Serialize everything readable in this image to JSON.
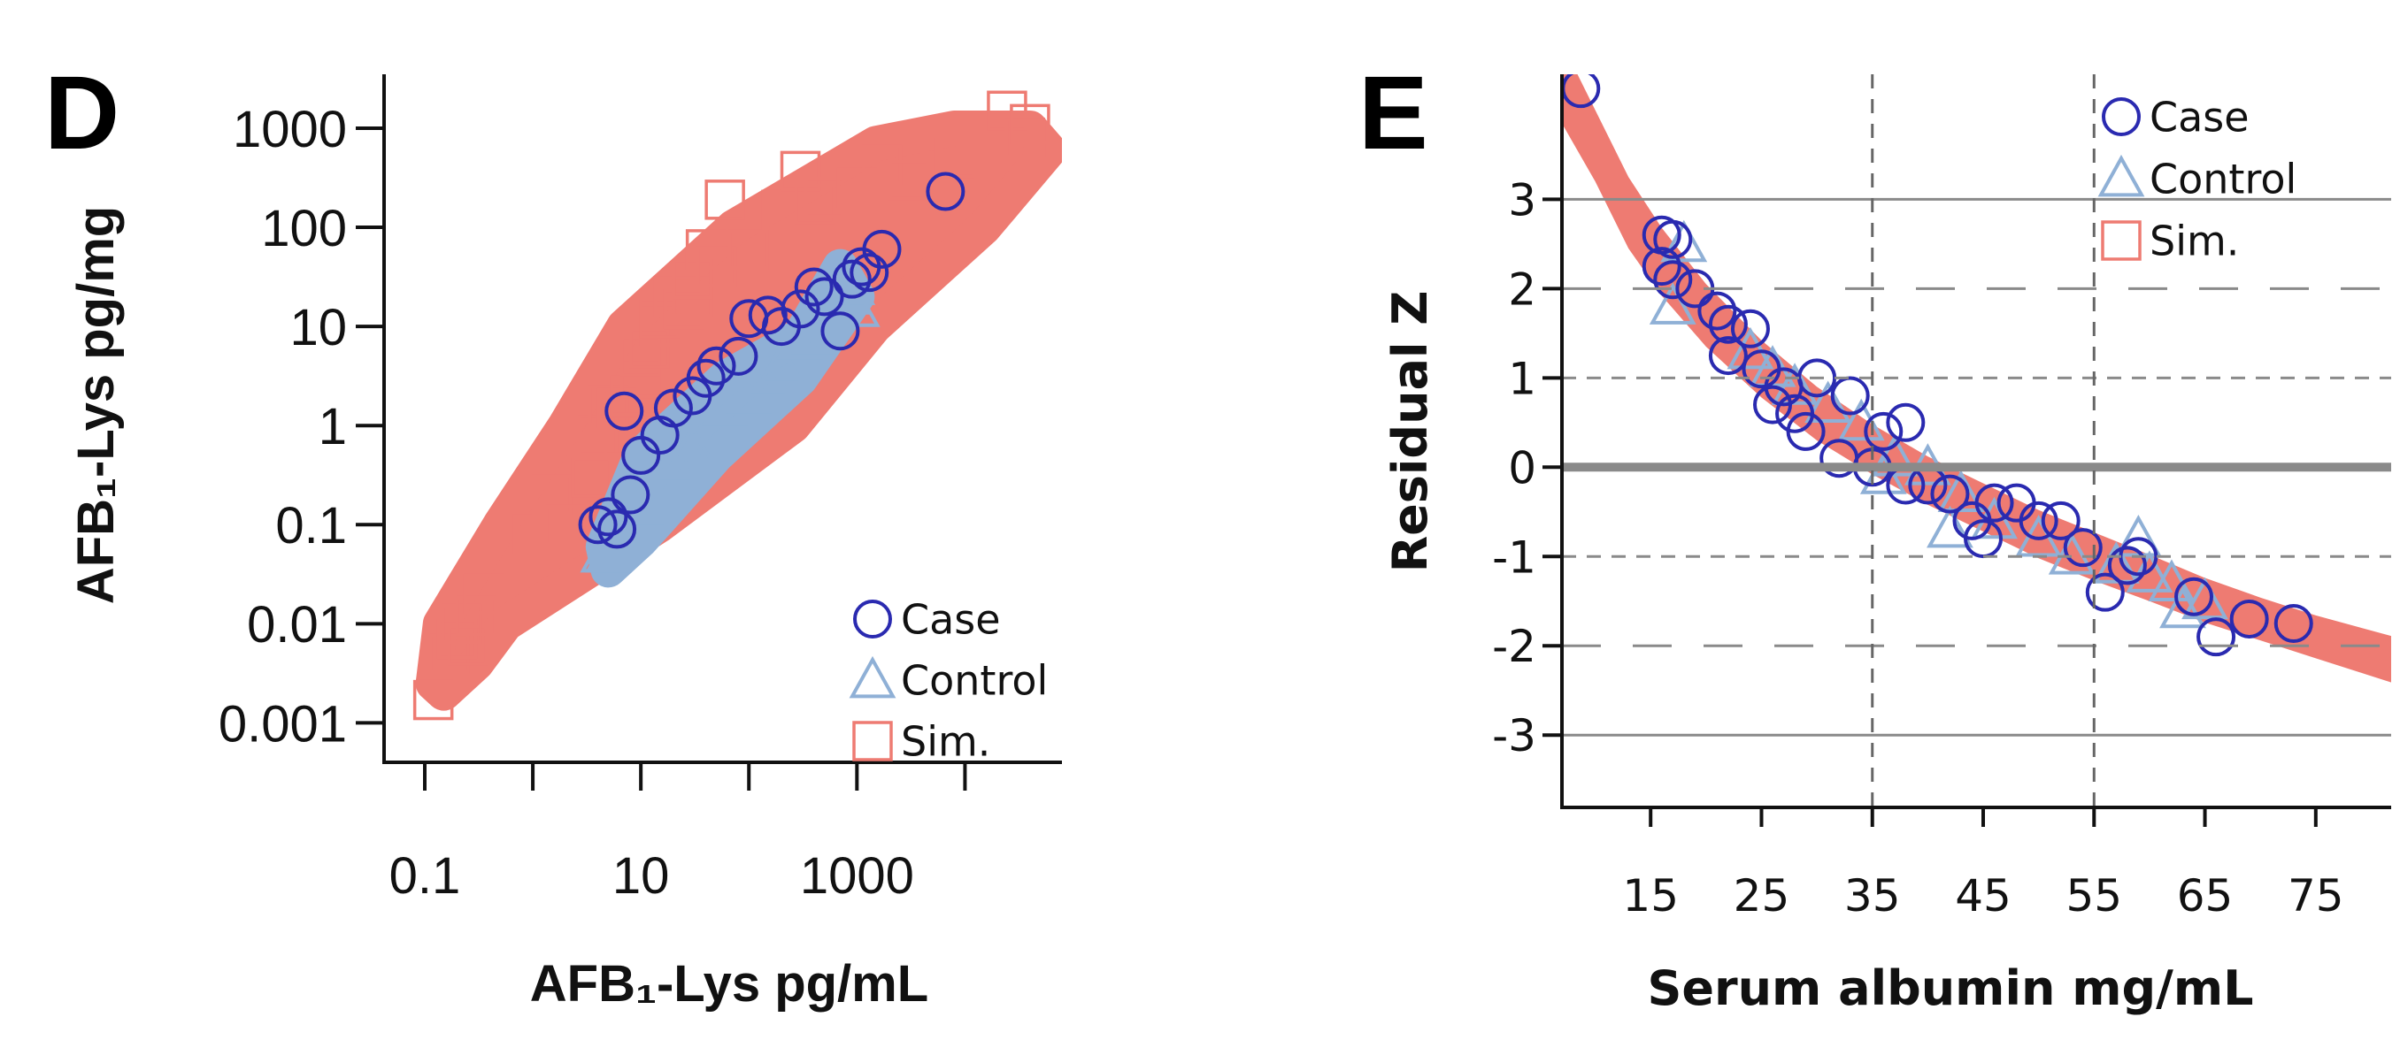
{
  "colors": {
    "case": "#2a2ab0",
    "control": "#8fb0d6",
    "sim": "#ee7b72",
    "axis": "#111111",
    "grid": "#8a8a8a"
  },
  "chart_data": [
    {
      "panel_label": "D",
      "type": "scatter",
      "title": "",
      "xlabel": "AFB₁-Lys pg/mL",
      "ylabel": "AFB₁-Lys pg/mg",
      "xscale": "log",
      "yscale": "log",
      "xlim": [
        0.042,
        79000
      ],
      "ylim": [
        0.0004,
        3500
      ],
      "grid": false,
      "xticks": [
        0.1,
        1,
        10,
        100,
        1000,
        10000
      ],
      "xtick_labels": [
        "0.1",
        "",
        "10",
        "",
        "1000",
        ""
      ],
      "yticks": [
        0.001,
        0.01,
        0.1,
        1,
        10,
        100,
        1000
      ],
      "ytick_labels": [
        "0.001",
        "0.01",
        "0.1",
        "1",
        "10",
        "100",
        "1000"
      ],
      "legend": {
        "position": "bottom-right",
        "entries": [
          {
            "label": "Case",
            "marker": "circle",
            "series": "case"
          },
          {
            "label": "Control",
            "marker": "triangle",
            "series": "control"
          },
          {
            "label": "Sim.",
            "marker": "square",
            "series": "sim"
          }
        ]
      },
      "series": [
        {
          "name": "Sim.",
          "key": "sim",
          "marker": "square",
          "dense_region": [
            [
              0.12,
              0.0025
            ],
            [
              0.14,
              0.01
            ],
            [
              0.5,
              0.1
            ],
            [
              2,
              1
            ],
            [
              7,
              10
            ],
            [
              72,
              100
            ],
            [
              400,
              300
            ],
            [
              1500,
              700
            ],
            [
              8000,
              1000
            ],
            [
              40000,
              1000
            ],
            [
              60000,
              600
            ],
            [
              15000,
              100
            ],
            [
              1450,
              10
            ],
            [
              257,
              1
            ],
            [
              15,
              0.1
            ],
            [
              0.56,
              0.01
            ],
            [
              0.3,
              0.004
            ],
            [
              0.15,
              0.002
            ]
          ],
          "points": [
            [
              0.12,
              0.0017
            ],
            [
              0.17,
              0.005
            ],
            [
              0.2,
              0.007
            ],
            [
              0.25,
              0.006
            ],
            [
              0.22,
              0.01
            ],
            [
              0.3,
              0.012
            ],
            [
              0.35,
              0.02
            ],
            [
              1,
              0.08
            ],
            [
              1.5,
              0.2
            ],
            [
              2,
              0.1
            ],
            [
              3.5,
              0.3
            ],
            [
              4,
              0.8
            ],
            [
              5,
              1.6
            ],
            [
              6,
              1.5
            ],
            [
              7,
              0.8
            ],
            [
              8,
              2
            ],
            [
              10,
              3
            ],
            [
              10,
              5
            ],
            [
              12,
              6
            ],
            [
              15,
              10
            ],
            [
              15,
              12
            ],
            [
              20,
              20
            ],
            [
              25,
              15
            ],
            [
              30,
              20
            ],
            [
              30,
              30
            ],
            [
              40,
              60
            ],
            [
              50,
              40
            ],
            [
              60,
              190
            ],
            [
              100,
              60
            ],
            [
              200,
              150
            ],
            [
              300,
              370
            ],
            [
              410,
              170
            ],
            [
              500,
              200
            ],
            [
              1000,
              250
            ],
            [
              1700,
              430
            ],
            [
              3000,
              300
            ],
            [
              8000,
              500
            ],
            [
              24500,
              1500
            ],
            [
              36000,
              800
            ],
            [
              40000,
              1100
            ]
          ]
        },
        {
          "name": "Control",
          "key": "control",
          "marker": "triangle",
          "dense_region": [
            [
              4.5,
              0.06
            ],
            [
              10,
              0.5
            ],
            [
              60,
              3
            ],
            [
              300,
              8
            ],
            [
              700,
              40
            ],
            [
              1000,
              20
            ],
            [
              300,
              3
            ],
            [
              50,
              0.5
            ],
            [
              10,
              0.07
            ],
            [
              5,
              0.035
            ]
          ],
          "points": [
            [
              4.5,
              0.05
            ],
            [
              5,
              0.05
            ],
            [
              6,
              0.08
            ],
            [
              8,
              0.1
            ],
            [
              10,
              0.15
            ],
            [
              12,
              0.3
            ],
            [
              20,
              0.4
            ],
            [
              25,
              0.7
            ],
            [
              30,
              0.6
            ],
            [
              50,
              1
            ],
            [
              60,
              1.5
            ],
            [
              100,
              2
            ],
            [
              150,
              3
            ],
            [
              200,
              4
            ],
            [
              300,
              7
            ],
            [
              400,
              8
            ],
            [
              700,
              30
            ],
            [
              800,
              20
            ],
            [
              900,
              25
            ],
            [
              1000,
              15
            ]
          ]
        },
        {
          "name": "Case",
          "key": "case",
          "marker": "circle",
          "points": [
            [
              7,
              1.4
            ],
            [
              6600,
              230
            ],
            [
              1700,
              60
            ],
            [
              1100,
              40
            ],
            [
              1300,
              35
            ],
            [
              500,
              20
            ],
            [
              100,
              12
            ],
            [
              150,
              13
            ],
            [
              300,
              15
            ],
            [
              700,
              9
            ],
            [
              40,
              3
            ],
            [
              20,
              1.5
            ],
            [
              15,
              0.8
            ],
            [
              10,
              0.5
            ],
            [
              5,
              0.12
            ],
            [
              4,
              0.1
            ],
            [
              6,
              0.09
            ],
            [
              8,
              0.2
            ],
            [
              30,
              2
            ],
            [
              50,
              4
            ],
            [
              80,
              5
            ],
            [
              200,
              10
            ],
            [
              400,
              25
            ],
            [
              900,
              30
            ]
          ]
        }
      ]
    },
    {
      "panel_label": "E",
      "type": "scatter",
      "title": "",
      "xlabel": "Serum albumin mg/mL",
      "ylabel": "Residual Z",
      "xscale": "linear",
      "yscale": "linear",
      "xlim": [
        7,
        81.8
      ],
      "ylim": [
        -3.81,
        4.4
      ],
      "xticks": [
        15,
        25,
        35,
        45,
        55,
        65,
        75
      ],
      "xtick_labels": [
        "15",
        "25",
        "35",
        "45",
        "55",
        "65",
        "75"
      ],
      "yticks": [
        -3,
        -2,
        -1,
        0,
        1,
        2,
        3
      ],
      "ytick_labels": [
        "-3",
        "-2",
        "-1",
        "0",
        "1",
        "2",
        "3"
      ],
      "reference_lines": {
        "horizontal": [
          {
            "y": 3,
            "style": "solid"
          },
          {
            "y": 2,
            "style": "long-dash"
          },
          {
            "y": 1,
            "style": "short-dash"
          },
          {
            "y": 0,
            "style": "thick"
          },
          {
            "y": -1,
            "style": "short-dash"
          },
          {
            "y": -2,
            "style": "long-dash"
          },
          {
            "y": -3,
            "style": "solid"
          }
        ],
        "vertical": [
          {
            "x": 35,
            "style": "dashed"
          },
          {
            "x": 55,
            "style": "dashed"
          }
        ]
      },
      "legend": {
        "position": "top-right",
        "entries": [
          {
            "label": "Case",
            "marker": "circle",
            "series": "case"
          },
          {
            "label": "Control",
            "marker": "triangle",
            "series": "control"
          },
          {
            "label": "Sim.",
            "marker": "square",
            "series": "sim"
          }
        ]
      },
      "series": [
        {
          "name": "Sim.",
          "key": "sim",
          "marker": "square",
          "band": {
            "x": [
              7.0,
              10,
              13,
              16,
              20,
              25,
              30,
              35,
              40,
              45,
              50,
              55,
              60,
              65,
              70,
              75,
              81.8
            ],
            "lower": [
              3.85,
              3.2,
              2.45,
              1.92,
              1.35,
              0.78,
              0.3,
              -0.08,
              -0.42,
              -0.72,
              -1.02,
              -1.27,
              -1.5,
              -1.74,
              -1.94,
              -2.14,
              -2.41
            ],
            "upper": [
              4.75,
              4.0,
              3.25,
              2.68,
              2.05,
              1.42,
              0.9,
              0.48,
              0.12,
              -0.18,
              -0.48,
              -0.73,
              -0.98,
              -1.24,
              -1.46,
              -1.66,
              -1.89
            ]
          }
        },
        {
          "name": "Control",
          "key": "control",
          "marker": "triangle",
          "points": [
            [
              17,
              1.8
            ],
            [
              18,
              2.5
            ],
            [
              24,
              1.3
            ],
            [
              26,
              1.1
            ],
            [
              28,
              0.9
            ],
            [
              31,
              0.7
            ],
            [
              34,
              0.5
            ],
            [
              37,
              0.1
            ],
            [
              40,
              0
            ],
            [
              43,
              -0.3
            ],
            [
              46,
              -0.6
            ],
            [
              50,
              -0.8
            ],
            [
              53,
              -1.0
            ],
            [
              57,
              -1.1
            ],
            [
              59,
              -0.8
            ],
            [
              60,
              -1.2
            ],
            [
              62,
              -1.3
            ],
            [
              63,
              -1.6
            ],
            [
              65,
              -1.5
            ],
            [
              42,
              -0.7
            ],
            [
              36,
              -0.1
            ]
          ]
        },
        {
          "name": "Case",
          "key": "case",
          "marker": "circle",
          "points": [
            [
              8.7,
              4.24
            ],
            [
              16,
              2.6
            ],
            [
              17,
              2.55
            ],
            [
              16,
              2.25
            ],
            [
              17,
              2.1
            ],
            [
              19,
              2.0
            ],
            [
              21,
              1.75
            ],
            [
              22,
              1.6
            ],
            [
              24,
              1.55
            ],
            [
              22,
              1.25
            ],
            [
              25,
              1.1
            ],
            [
              26,
              0.7
            ],
            [
              27,
              0.9
            ],
            [
              30,
              1.0
            ],
            [
              28,
              0.6
            ],
            [
              29,
              0.4
            ],
            [
              33,
              0.8
            ],
            [
              36,
              0.4
            ],
            [
              38,
              0.5
            ],
            [
              32,
              0.1
            ],
            [
              35,
              0
            ],
            [
              38,
              -0.2
            ],
            [
              40,
              -0.2
            ],
            [
              42,
              -0.3
            ],
            [
              44,
              -0.6
            ],
            [
              45,
              -0.8
            ],
            [
              46,
              -0.4
            ],
            [
              48,
              -0.4
            ],
            [
              50,
              -0.6
            ],
            [
              52,
              -0.6
            ],
            [
              54,
              -0.9
            ],
            [
              56,
              -1.4
            ],
            [
              58,
              -1.1
            ],
            [
              59,
              -1.0
            ],
            [
              64,
              -1.45
            ],
            [
              66,
              -1.9
            ],
            [
              69,
              -1.7
            ],
            [
              73,
              -1.75
            ]
          ]
        }
      ]
    }
  ]
}
